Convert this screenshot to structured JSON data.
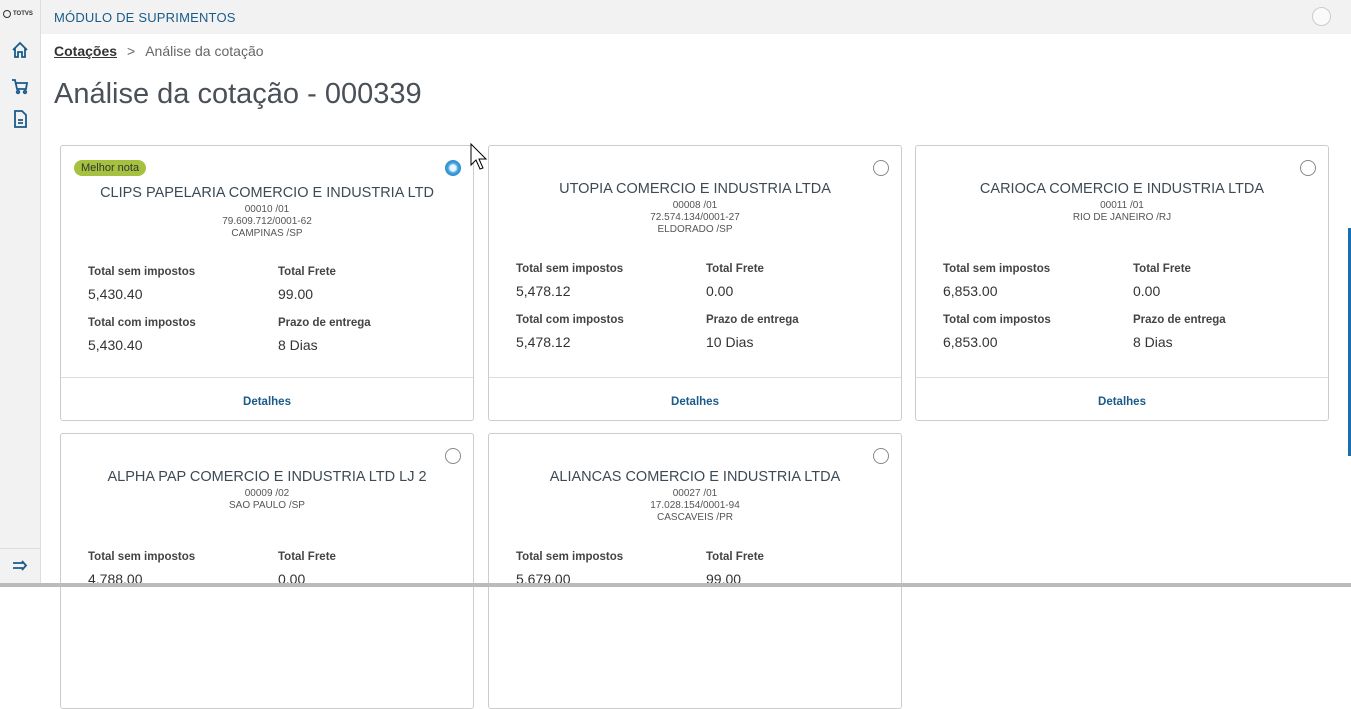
{
  "app": {
    "logo": "TOTVS",
    "module": "MÓDULO DE SUPRIMENTOS"
  },
  "breadcrumb": {
    "link": "Cotações",
    "separator": ">",
    "current": "Análise da cotação"
  },
  "page_title": "Análise da cotação - 000339",
  "labels": {
    "total_sem": "Total sem impostos",
    "frete": "Total Frete",
    "total_com": "Total com impostos",
    "prazo": "Prazo de entrega",
    "details": "Detalhes",
    "badge": "Melhor nota"
  },
  "cards": [
    {
      "name": "CLIPS PAPELARIA COMERCIO E INDUSTRIA LTD",
      "code": "00010 /01",
      "cnpj": "79.609.712/0001-62",
      "city": "CAMPINAS /SP",
      "total_sem": "5,430.40",
      "frete": "99.00",
      "total_com": "5,430.40",
      "prazo": "8 Dias",
      "selected": true
    },
    {
      "name": "UTOPIA COMERCIO E INDUSTRIA LTDA",
      "code": "00008 /01",
      "cnpj": "72.574.134/0001-27",
      "city": "ELDORADO /SP",
      "total_sem": "5,478.12",
      "frete": "0.00",
      "total_com": "5,478.12",
      "prazo": "10 Dias",
      "selected": false
    },
    {
      "name": "CARIOCA COMERCIO E INDUSTRIA LTDA",
      "code": "00011 /01",
      "city": "RIO DE JANEIRO /RJ",
      "total_sem": "6,853.00",
      "frete": "0.00",
      "total_com": "6,853.00",
      "prazo": "8 Dias",
      "selected": false
    },
    {
      "name": "ALPHA PAP COMERCIO E INDUSTRIA LTD LJ 2",
      "code": "00009 /02",
      "city": "SAO PAULO /SP",
      "total_sem": "4,788.00",
      "frete": "0.00",
      "selected": false
    },
    {
      "name": "ALIANCAS COMERCIO E INDUSTRIA LTDA",
      "code": "00027 /01",
      "cnpj": "17.028.154/0001-94",
      "city": "CASCAVEIS /PR",
      "total_sem": "5,679.00",
      "frete": "99.00",
      "selected": false
    }
  ]
}
